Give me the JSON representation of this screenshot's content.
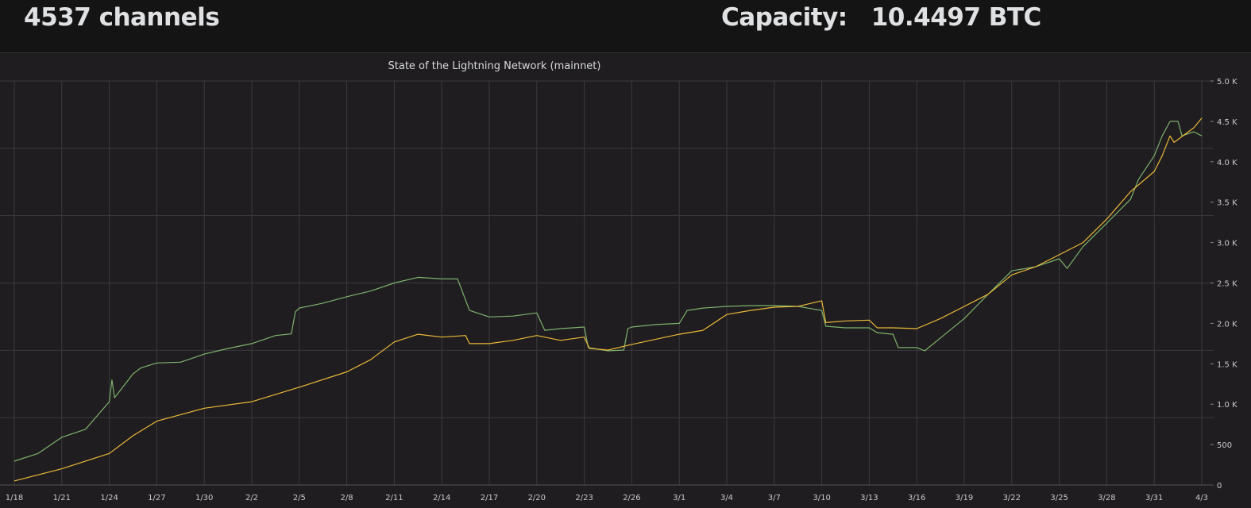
{
  "header": {
    "channels_stat": "4537 channels",
    "capacity_label": "Capacity:",
    "capacity_value": "10.4497 BTC"
  },
  "chart_data": {
    "type": "line",
    "title": "State of the Lightning Network (mainnet)",
    "xlabel": "",
    "ylabel": "",
    "x_ticks": [
      "1/18",
      "1/21",
      "1/24",
      "1/27",
      "1/30",
      "2/2",
      "2/5",
      "2/8",
      "2/11",
      "2/14",
      "2/17",
      "2/20",
      "2/23",
      "2/26",
      "3/1",
      "3/4",
      "3/7",
      "3/10",
      "3/13",
      "3/16",
      "3/19",
      "3/22",
      "3/25",
      "3/28",
      "3/31",
      "4/3"
    ],
    "y_ticks": [
      "0",
      "500",
      "1.0 K",
      "1.5 K",
      "2.0 K",
      "2.5 K",
      "3.0 K",
      "3.5 K",
      "4.0 K",
      "4.5 K",
      "5.0 K"
    ],
    "ylim": [
      0,
      5000
    ],
    "xlim": [
      "1/18 00:00",
      "4/3 00:00"
    ],
    "y_axis_side": "right",
    "grid": true,
    "legend": "none",
    "series": [
      {
        "color": "#7eb26d",
        "points": [
          [
            "1/18 00:00",
            295
          ],
          [
            "1/19 12:00",
            390
          ],
          [
            "1/21 00:00",
            590
          ],
          [
            "1/22 12:00",
            690
          ],
          [
            "1/24 00:00",
            1030
          ],
          [
            "1/24 04:00",
            1300
          ],
          [
            "1/24 08:00",
            1080
          ],
          [
            "1/25 12:00",
            1375
          ],
          [
            "1/26 00:00",
            1450
          ],
          [
            "1/27 00:00",
            1510
          ],
          [
            "1/28 12:00",
            1520
          ],
          [
            "1/30 00:00",
            1620
          ],
          [
            "1/31 12:00",
            1690
          ],
          [
            "2/2 00:00",
            1750
          ],
          [
            "2/3 12:00",
            1850
          ],
          [
            "2/4 12:00",
            1870
          ],
          [
            "2/4 18:00",
            2140
          ],
          [
            "2/5 00:00",
            2190
          ],
          [
            "2/6 12:00",
            2250
          ],
          [
            "2/8 00:00",
            2330
          ],
          [
            "2/9 12:00",
            2400
          ],
          [
            "2/11 00:00",
            2500
          ],
          [
            "2/12 12:00",
            2570
          ],
          [
            "2/14 00:00",
            2550
          ],
          [
            "2/15 00:00",
            2550
          ],
          [
            "2/15 18:00",
            2160
          ],
          [
            "2/17 00:00",
            2080
          ],
          [
            "2/18 12:00",
            2090
          ],
          [
            "2/20 00:00",
            2130
          ],
          [
            "2/20 12:00",
            1915
          ],
          [
            "2/21 12:00",
            1935
          ],
          [
            "2/23 00:00",
            1955
          ],
          [
            "2/23 06:00",
            1700
          ],
          [
            "2/24 12:00",
            1660
          ],
          [
            "2/25 12:00",
            1670
          ],
          [
            "2/25 18:00",
            1935
          ],
          [
            "2/26 00:00",
            1955
          ],
          [
            "2/27 12:00",
            1985
          ],
          [
            "3/1 00:00",
            2000
          ],
          [
            "3/1 12:00",
            2160
          ],
          [
            "3/2 12:00",
            2190
          ],
          [
            "3/4 00:00",
            2210
          ],
          [
            "3/5 12:00",
            2220
          ],
          [
            "3/7 00:00",
            2220
          ],
          [
            "3/8 12:00",
            2210
          ],
          [
            "3/10 00:00",
            2160
          ],
          [
            "3/10 06:00",
            1965
          ],
          [
            "3/11 12:00",
            1945
          ],
          [
            "3/13 00:00",
            1945
          ],
          [
            "3/13 12:00",
            1885
          ],
          [
            "3/14 12:00",
            1865
          ],
          [
            "3/14 20:00",
            1700
          ],
          [
            "3/16 00:00",
            1700
          ],
          [
            "3/16 12:00",
            1660
          ],
          [
            "3/17 12:00",
            1820
          ],
          [
            "3/19 00:00",
            2060
          ],
          [
            "3/20 12:00",
            2360
          ],
          [
            "3/22 00:00",
            2650
          ],
          [
            "3/23 12:00",
            2700
          ],
          [
            "3/25 00:00",
            2800
          ],
          [
            "3/25 12:00",
            2680
          ],
          [
            "3/26 12:00",
            2950
          ],
          [
            "3/28 00:00",
            3240
          ],
          [
            "3/29 12:00",
            3535
          ],
          [
            "3/30 00:00",
            3780
          ],
          [
            "3/31 00:00",
            4075
          ],
          [
            "3/31 12:00",
            4320
          ],
          [
            "4/1 00:00",
            4500
          ],
          [
            "4/1 12:00",
            4500
          ],
          [
            "4/1 18:00",
            4320
          ],
          [
            "4/2 12:00",
            4370
          ],
          [
            "4/3 00:00",
            4320
          ]
        ]
      },
      {
        "color": "#eab839",
        "points": [
          [
            "1/18 00:00",
            50
          ],
          [
            "1/21 00:00",
            200
          ],
          [
            "1/24 00:00",
            390
          ],
          [
            "1/25 12:00",
            610
          ],
          [
            "1/27 00:00",
            790
          ],
          [
            "1/30 00:00",
            950
          ],
          [
            "2/2 00:00",
            1030
          ],
          [
            "2/5 00:00",
            1210
          ],
          [
            "2/8 00:00",
            1400
          ],
          [
            "2/9 12:00",
            1550
          ],
          [
            "2/11 00:00",
            1770
          ],
          [
            "2/12 12:00",
            1865
          ],
          [
            "2/14 00:00",
            1830
          ],
          [
            "2/15 12:00",
            1850
          ],
          [
            "2/15 18:00",
            1750
          ],
          [
            "2/17 00:00",
            1750
          ],
          [
            "2/18 12:00",
            1790
          ],
          [
            "2/20 00:00",
            1850
          ],
          [
            "2/21 12:00",
            1790
          ],
          [
            "2/23 00:00",
            1830
          ],
          [
            "2/23 08:00",
            1690
          ],
          [
            "2/24 12:00",
            1670
          ],
          [
            "2/26 00:00",
            1740
          ],
          [
            "3/1 00:00",
            1865
          ],
          [
            "3/2 12:00",
            1915
          ],
          [
            "3/4 00:00",
            2110
          ],
          [
            "3/5 12:00",
            2160
          ],
          [
            "3/7 00:00",
            2200
          ],
          [
            "3/8 12:00",
            2210
          ],
          [
            "3/10 00:00",
            2280
          ],
          [
            "3/10 06:00",
            2010
          ],
          [
            "3/11 12:00",
            2030
          ],
          [
            "3/13 00:00",
            2040
          ],
          [
            "3/13 12:00",
            1945
          ],
          [
            "3/14 12:00",
            1945
          ],
          [
            "3/16 00:00",
            1935
          ],
          [
            "3/17 12:00",
            2060
          ],
          [
            "3/19 00:00",
            2210
          ],
          [
            "3/20 12:00",
            2360
          ],
          [
            "3/22 00:00",
            2600
          ],
          [
            "3/23 12:00",
            2700
          ],
          [
            "3/25 00:00",
            2850
          ],
          [
            "3/26 12:00",
            3000
          ],
          [
            "3/28 00:00",
            3290
          ],
          [
            "3/29 12:00",
            3630
          ],
          [
            "3/31 00:00",
            3880
          ],
          [
            "3/31 12:00",
            4075
          ],
          [
            "4/1 00:00",
            4320
          ],
          [
            "4/1 06:00",
            4240
          ],
          [
            "4/2 12:00",
            4420
          ],
          [
            "4/3 00:00",
            4540
          ]
        ]
      }
    ]
  }
}
